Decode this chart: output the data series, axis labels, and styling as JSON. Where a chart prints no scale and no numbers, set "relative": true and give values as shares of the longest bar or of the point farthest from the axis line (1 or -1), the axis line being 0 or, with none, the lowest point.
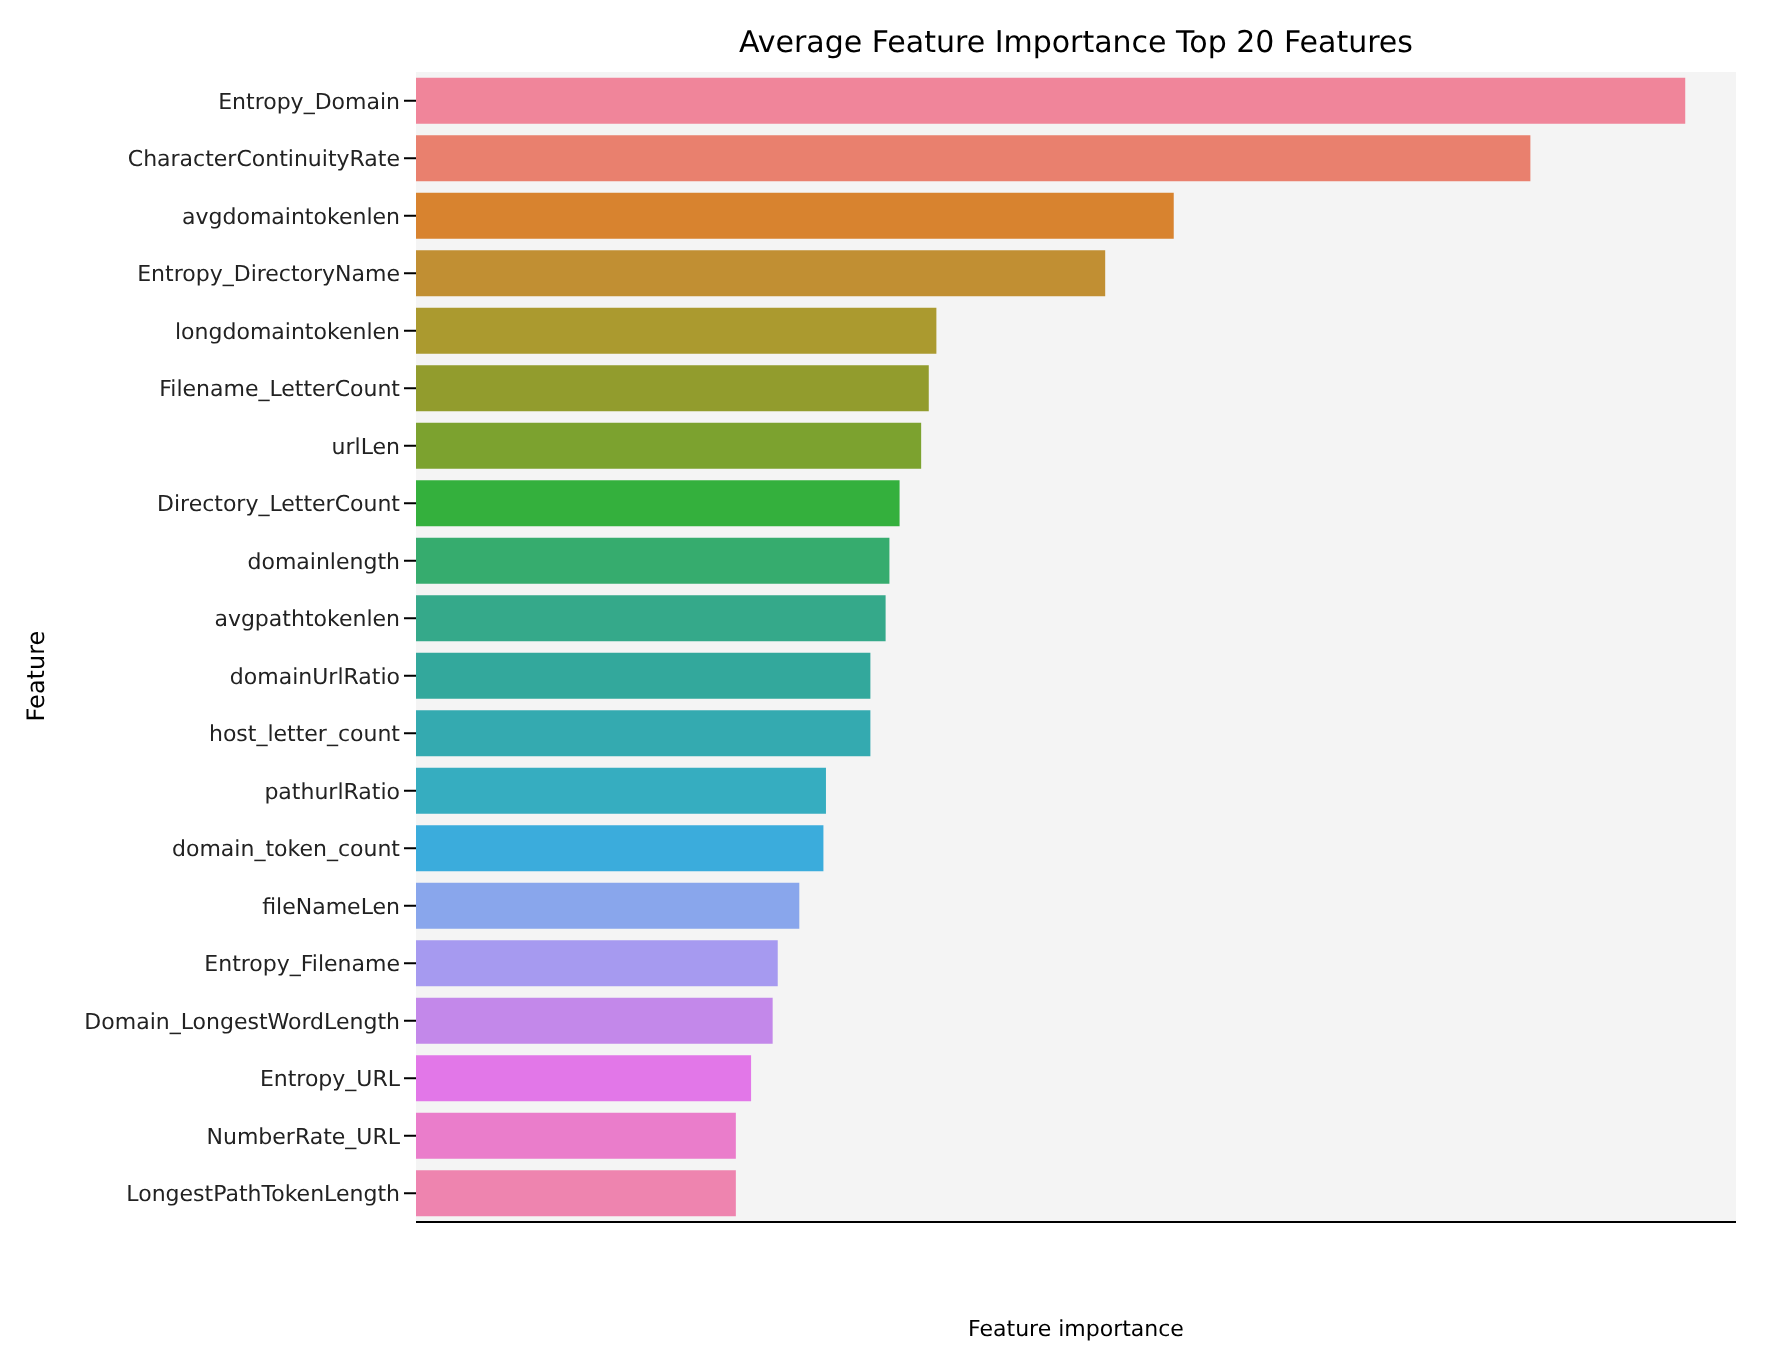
{
  "chart_data": {
    "type": "bar",
    "orientation": "horizontal",
    "relative": true,
    "title": "Average Feature Importance Top 20 Features",
    "xlabel": "Feature importance",
    "ylabel": "Feature",
    "categories": [
      "Entropy_Domain",
      "CharacterContinuityRate",
      "avgdomaintokenlen",
      "Entropy_DirectoryName",
      "longdomaintokenlen",
      "Filename_LetterCount",
      "urlLen",
      "Directory_LetterCount",
      "domainlength",
      "avgpathtokenlen",
      "domainUrlRatio",
      "host_letter_count",
      "pathurlRatio",
      "domain_token_count",
      "fileNameLen",
      "Entropy_Filename",
      "Domain_LongestWordLength",
      "Entropy_URL",
      "NumberRate_URL",
      "LongestPathTokenLength"
    ],
    "values": [
      1,
      0.878,
      0.597,
      0.543,
      0.41,
      0.404,
      0.398,
      0.381,
      0.373,
      0.37,
      0.358,
      0.358,
      0.323,
      0.321,
      0.302,
      0.285,
      0.281,
      0.264,
      0.252,
      0.252
    ],
    "colors": [
      "#f0859a",
      "#e9806e",
      "#d8832f",
      "#c18f33",
      "#ab9a2f",
      "#929c2d",
      "#7ca22f",
      "#34b03d",
      "#36ac6e",
      "#35a98a",
      "#33a89c",
      "#34aab0",
      "#36adc0",
      "#3bacdc",
      "#89a6ec",
      "#a69af0",
      "#c388ea",
      "#e277e8",
      "#ea7dcb",
      "#ee84af"
    ]
  }
}
